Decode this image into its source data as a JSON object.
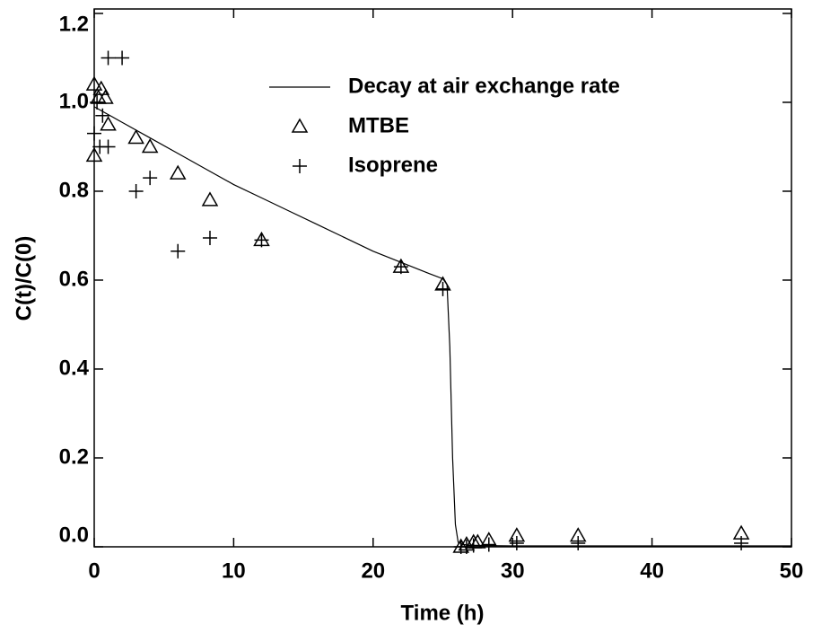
{
  "chart_data": {
    "type": "line",
    "xlabel": "Time (h)",
    "ylabel": "C(t)/C(0)",
    "xlim": [
      0,
      50
    ],
    "xticks": [
      0,
      10,
      20,
      30,
      40,
      50
    ],
    "ylim": [
      0,
      1.21
    ],
    "yticks": [
      {
        "value": 0,
        "label": "0.0"
      },
      0.2,
      0.4,
      0.6,
      0.8,
      {
        "value": 1,
        "label": "1.0"
      },
      1.2
    ],
    "legend": "upper center",
    "series": [
      {
        "name": "Decay at air exchange rate",
        "type": "line",
        "color": "#000000",
        "x": [
          0,
          2,
          4,
          6,
          8,
          10,
          12,
          14,
          16,
          18,
          20,
          22,
          24,
          25,
          25.3,
          25.5,
          25.7,
          25.9,
          26.1,
          26.5,
          27,
          30,
          35,
          40,
          50
        ],
        "values": [
          0.99,
          0.955,
          0.92,
          0.885,
          0.85,
          0.815,
          0.785,
          0.755,
          0.725,
          0.695,
          0.665,
          0.64,
          0.615,
          0.603,
          0.59,
          0.45,
          0.2,
          0.05,
          0.01,
          0.005,
          0.003,
          0.002,
          0.002,
          0.002,
          0.002
        ]
      },
      {
        "name": "MTBE",
        "type": "triangle",
        "color": "#000000",
        "x": [
          0,
          0,
          0.3,
          0.5,
          0.8,
          1,
          3,
          4,
          6,
          8.3,
          12,
          22,
          25,
          26.3,
          26.7,
          27.2,
          27.5,
          28.3,
          30.3,
          34.7,
          46.4
        ],
        "values": [
          1.04,
          0.88,
          1.01,
          1.03,
          1.01,
          0.95,
          0.92,
          0.9,
          0.84,
          0.78,
          0.69,
          0.63,
          0.59,
          0.0,
          0.005,
          0.01,
          0.01,
          0.015,
          0.025,
          0.025,
          0.03
        ]
      },
      {
        "name": "Isoprene",
        "type": "plus",
        "color": "#000000",
        "x": [
          0,
          0.2,
          0.4,
          0.6,
          1,
          2,
          1,
          3,
          4,
          6,
          8.3,
          12,
          22,
          25,
          26.3,
          26.7,
          27.2,
          28.3,
          30.3,
          34.7,
          46.4
        ],
        "values": [
          0.93,
          1.0,
          0.9,
          0.97,
          1.1,
          1.1,
          0.9,
          0.8,
          0.83,
          0.665,
          0.695,
          0.69,
          0.63,
          0.58,
          0.0,
          0.0,
          0.003,
          0.005,
          0.008,
          0.008,
          0.008
        ]
      }
    ]
  }
}
